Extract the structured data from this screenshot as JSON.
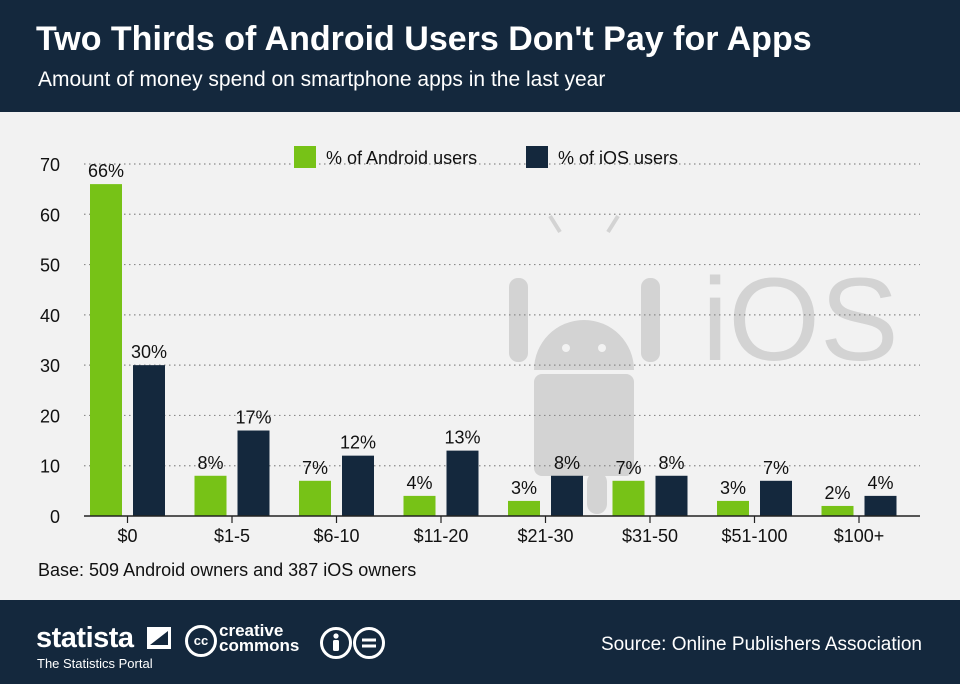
{
  "header": {
    "title": "Two Thirds of Android Users Don't Pay for Apps",
    "subtitle": "Amount of money spend on smartphone apps in the last year"
  },
  "chart_data": {
    "type": "bar",
    "categories": [
      "$0",
      "$1-5",
      "$6-10",
      "$11-20",
      "$21-30",
      "$31-50",
      "$51-100",
      "$100+"
    ],
    "series": [
      {
        "name": "% of Android users",
        "color": "#77c217",
        "values": [
          66,
          8,
          7,
          4,
          3,
          7,
          3,
          2
        ],
        "labels": [
          "66%",
          "8%",
          "7%",
          "4%",
          "3%",
          "7%",
          "3%",
          "2%"
        ]
      },
      {
        "name": "% of iOS users",
        "color": "#14283d",
        "values": [
          30,
          17,
          12,
          13,
          8,
          8,
          7,
          4
        ],
        "labels": [
          "30%",
          "17%",
          "12%",
          "13%",
          "8%",
          "8%",
          "7%",
          "4%"
        ]
      }
    ],
    "ylim": [
      0,
      70
    ],
    "yticks": [
      "0",
      "10",
      "20",
      "30",
      "40",
      "50",
      "60",
      "70"
    ],
    "grid": true,
    "legend_position": "top-center",
    "background_watermark": "iOS",
    "note": "Base: 509 Android owners and 387 iOS owners"
  },
  "footer": {
    "brand": "statista",
    "tagline": "The Statistics Portal",
    "cc_line1": "creative",
    "cc_line2": "commons",
    "cc_symbol": "cc",
    "source": "Source: Online Publishers Association"
  },
  "colors": {
    "android": "#77c217",
    "ios": "#14283d",
    "header_bg": "#14283d",
    "grid": "#8a8a8a",
    "watermark": "#d3d3d3"
  }
}
